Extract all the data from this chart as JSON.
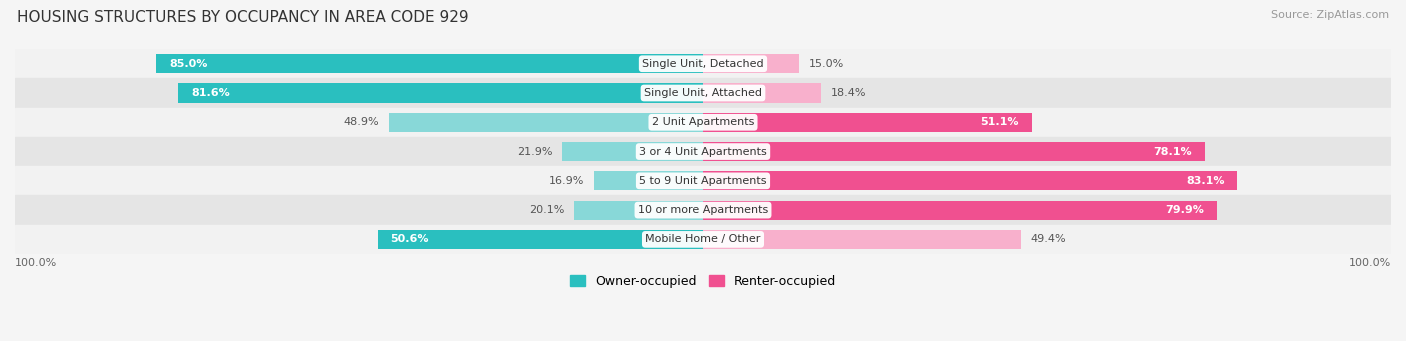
{
  "title": "HOUSING STRUCTURES BY OCCUPANCY IN AREA CODE 929",
  "source": "Source: ZipAtlas.com",
  "categories": [
    "Single Unit, Detached",
    "Single Unit, Attached",
    "2 Unit Apartments",
    "3 or 4 Unit Apartments",
    "5 to 9 Unit Apartments",
    "10 or more Apartments",
    "Mobile Home / Other"
  ],
  "owner_pct": [
    85.0,
    81.6,
    48.9,
    21.9,
    16.9,
    20.1,
    50.6
  ],
  "renter_pct": [
    15.0,
    18.4,
    51.1,
    78.1,
    83.1,
    79.9,
    49.4
  ],
  "owner_color_dark": "#2abfbf",
  "renter_color_dark": "#f05090",
  "owner_color_light": "#88d8d8",
  "renter_color_light": "#f8b0cc",
  "row_bg_light": "#f2f2f2",
  "row_bg_dark": "#e5e5e5",
  "fig_bg": "#f5f5f5",
  "title_fontsize": 11,
  "label_fontsize": 8,
  "source_fontsize": 8,
  "legend_fontsize": 9
}
